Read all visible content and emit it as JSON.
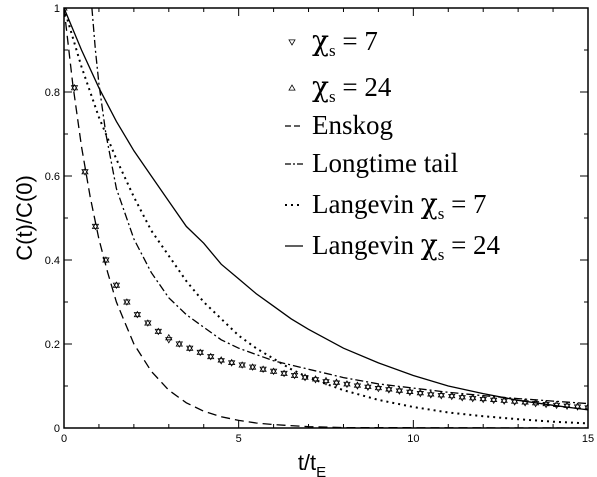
{
  "chart_data": {
    "type": "line",
    "title": "",
    "xlabel": {
      "main": "t/t",
      "sub": "E"
    },
    "ylabel": "C(t)/C(0)",
    "xlim": [
      0,
      15
    ],
    "ylim": [
      0,
      1
    ],
    "x_ticks": [
      "0",
      "5",
      "10",
      "15"
    ],
    "y_ticks": [
      "0",
      "0.2",
      "0.4",
      "0.6",
      "0.8",
      "1"
    ],
    "grid": false,
    "legend_position": "top-right",
    "legend": [
      {
        "symbol": "χ",
        "sub": "s",
        "text": " = 7",
        "marker": "triangle-down"
      },
      {
        "symbol": "χ",
        "sub": "s",
        "text": " = 24",
        "marker": "triangle-up"
      },
      {
        "symbol": "",
        "sub": "",
        "text": "Enskog",
        "line_style": "dashed"
      },
      {
        "symbol": "",
        "sub": "",
        "text": "Longtime tail",
        "line_style": "dash-dot"
      },
      {
        "symbol": "χ",
        "sub": "s",
        "text": " = 7",
        "prefix": "Langevin ",
        "line_style": "dotted"
      },
      {
        "symbol": "χ",
        "sub": "s",
        "text": " = 24",
        "prefix": "Langevin ",
        "line_style": "solid"
      }
    ],
    "series": [
      {
        "name": "χs = 7",
        "kind": "markers",
        "marker": "triangle-down",
        "x": [
          0,
          0.3,
          0.6,
          0.9,
          1.2,
          1.5,
          1.8,
          2.1,
          2.4,
          2.7,
          3.0,
          3.3,
          3.6,
          3.9,
          4.2,
          4.5,
          4.8,
          5.1,
          5.4,
          5.7,
          6.0,
          6.3,
          6.6,
          6.9,
          7.2,
          7.5,
          7.8,
          8.1,
          8.4,
          8.7,
          9.0,
          9.3,
          9.6,
          9.9,
          10.2,
          10.5,
          10.8,
          11.1,
          11.4,
          11.7,
          12.0,
          12.3,
          12.6,
          12.9,
          13.2,
          13.5,
          13.8,
          14.1,
          14.4,
          14.7,
          15.0
        ],
        "y": [
          1.0,
          0.81,
          0.61,
          0.48,
          0.4,
          0.34,
          0.3,
          0.27,
          0.25,
          0.23,
          0.21,
          0.2,
          0.19,
          0.18,
          0.17,
          0.16,
          0.155,
          0.15,
          0.145,
          0.14,
          0.135,
          0.13,
          0.125,
          0.12,
          0.115,
          0.11,
          0.107,
          0.104,
          0.1,
          0.097,
          0.094,
          0.091,
          0.088,
          0.085,
          0.082,
          0.079,
          0.077,
          0.075,
          0.072,
          0.07,
          0.068,
          0.066,
          0.064,
          0.062,
          0.06,
          0.058,
          0.056,
          0.054,
          0.052,
          0.05,
          0.048
        ]
      },
      {
        "name": "χs = 24",
        "kind": "markers",
        "marker": "triangle-up",
        "x": [
          0,
          0.3,
          0.6,
          0.9,
          1.2,
          1.5,
          1.8,
          2.1,
          2.4,
          2.7,
          3.0,
          3.3,
          3.6,
          3.9,
          4.2,
          4.5,
          4.8,
          5.1,
          5.4,
          5.7,
          6.0,
          6.3,
          6.6,
          6.9,
          7.2,
          7.5,
          7.8,
          8.1,
          8.4,
          8.7,
          9.0,
          9.3,
          9.6,
          9.9,
          10.2,
          10.5,
          10.8,
          11.1,
          11.4,
          11.7,
          12.0,
          12.3,
          12.6,
          12.9,
          13.2,
          13.5,
          13.8,
          14.1,
          14.4,
          14.7,
          15.0
        ],
        "y": [
          1.0,
          0.81,
          0.61,
          0.48,
          0.4,
          0.34,
          0.3,
          0.27,
          0.25,
          0.23,
          0.215,
          0.2,
          0.19,
          0.18,
          0.17,
          0.162,
          0.156,
          0.15,
          0.145,
          0.14,
          0.135,
          0.13,
          0.125,
          0.121,
          0.117,
          0.113,
          0.109,
          0.105,
          0.102,
          0.099,
          0.096,
          0.093,
          0.09,
          0.087,
          0.084,
          0.081,
          0.079,
          0.077,
          0.074,
          0.072,
          0.07,
          0.068,
          0.066,
          0.064,
          0.062,
          0.06,
          0.058,
          0.056,
          0.054,
          0.052,
          0.05
        ]
      },
      {
        "name": "Enskog",
        "kind": "line",
        "style": "dashed",
        "x": [
          0,
          0.25,
          0.5,
          0.75,
          1.0,
          1.25,
          1.5,
          1.75,
          2.0,
          2.5,
          3.0,
          3.5,
          4.0,
          4.5,
          5.0,
          5.5,
          6.0,
          7.0,
          8.0,
          15.0
        ],
        "y": [
          1.0,
          0.82,
          0.67,
          0.55,
          0.45,
          0.37,
          0.3,
          0.25,
          0.2,
          0.135,
          0.09,
          0.06,
          0.04,
          0.027,
          0.018,
          0.012,
          0.008,
          0.003,
          0.001,
          0.0
        ]
      },
      {
        "name": "Longtime tail",
        "kind": "line",
        "style": "dash-dot",
        "x": [
          0.8,
          0.9,
          1.0,
          1.2,
          1.5,
          2.0,
          2.5,
          3.0,
          3.5,
          4.0,
          4.5,
          5.0,
          5.5,
          6.0,
          7.0,
          8.0,
          9.0,
          10.0,
          11.0,
          12.0,
          13.0,
          14.0,
          15.0
        ],
        "y": [
          1.0,
          0.9,
          0.82,
          0.7,
          0.57,
          0.45,
          0.37,
          0.31,
          0.27,
          0.24,
          0.21,
          0.19,
          0.175,
          0.16,
          0.14,
          0.12,
          0.105,
          0.095,
          0.085,
          0.077,
          0.07,
          0.064,
          0.058
        ]
      },
      {
        "name": "Langevin χs = 7",
        "kind": "line",
        "style": "dotted",
        "x": [
          0,
          0.5,
          1.0,
          1.5,
          2.0,
          2.5,
          3.0,
          3.5,
          4.0,
          4.5,
          5.0,
          5.5,
          6.0,
          6.5,
          7.0,
          8.0,
          9.0,
          10.0,
          11.0,
          12.0,
          13.0,
          14.0,
          15.0
        ],
        "y": [
          1.0,
          0.86,
          0.74,
          0.64,
          0.55,
          0.47,
          0.41,
          0.35,
          0.3,
          0.26,
          0.22,
          0.19,
          0.165,
          0.14,
          0.12,
          0.09,
          0.067,
          0.05,
          0.037,
          0.028,
          0.021,
          0.015,
          0.011
        ]
      },
      {
        "name": "Langevin χs = 24",
        "kind": "line",
        "style": "solid",
        "x": [
          0,
          0.5,
          1.0,
          1.5,
          2.0,
          2.5,
          3.0,
          3.5,
          4.0,
          4.5,
          5.0,
          5.5,
          6.0,
          6.5,
          7.0,
          8.0,
          9.0,
          10.0,
          11.0,
          12.0,
          13.0,
          14.0,
          15.0
        ],
        "y": [
          1.0,
          0.9,
          0.81,
          0.73,
          0.66,
          0.6,
          0.54,
          0.48,
          0.44,
          0.39,
          0.355,
          0.32,
          0.29,
          0.26,
          0.235,
          0.19,
          0.155,
          0.125,
          0.1,
          0.082,
          0.066,
          0.054,
          0.043
        ]
      }
    ]
  }
}
